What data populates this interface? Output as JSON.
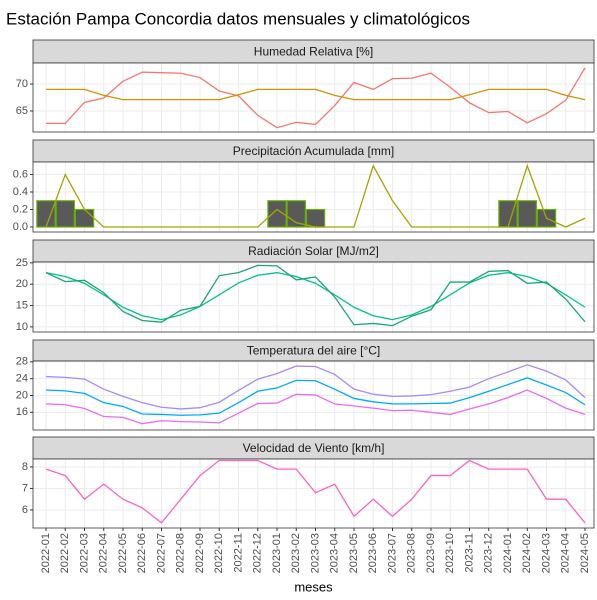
{
  "title": "Estación Pampa Concordia datos mensuales y climatológicos",
  "chart_data": [
    {
      "type": "line",
      "title": "Humedad Relativa [%]",
      "ylim": [
        61.1,
        73.9
      ],
      "yticks": [
        65,
        70
      ],
      "grid": true,
      "series": [
        {
          "color": "#F8766D",
          "values": [
            62.7,
            62.7,
            66.6,
            67.4,
            70.5,
            72.2,
            72.1,
            72.0,
            71.2,
            68.7,
            67.8,
            64.2,
            61.9,
            62.9,
            62.5,
            66.0,
            70.3,
            69.0,
            71.0,
            71.1,
            72.0,
            69.4,
            66.5,
            64.7,
            64.9,
            62.8,
            64.5,
            67.0,
            73.0
          ]
        },
        {
          "color": "#D39200",
          "values": [
            69.0,
            69.0,
            69.0,
            67.9,
            67.1,
            67.1,
            67.1,
            67.1,
            67.1,
            67.1,
            68.0,
            69.0,
            69.0,
            69.0,
            69.0,
            67.9,
            67.1,
            67.1,
            67.1,
            67.1,
            67.1,
            67.1,
            68.0,
            69.0,
            69.0,
            69.0,
            69.0,
            67.9,
            67.1
          ]
        }
      ]
    },
    {
      "type": "line",
      "title": "Precipitación Acumulada [mm]",
      "ylim": [
        -0.057,
        0.743
      ],
      "yticks": [
        {
          "value": 0,
          "label": "0.0"
        },
        0.2,
        0.4,
        0.6
      ],
      "grid": true,
      "series": [
        {
          "type": "bar",
          "color": "#595959",
          "outline": "#64B200",
          "values": [
            0.3,
            0.3,
            0.2,
            0,
            0,
            0,
            0,
            0,
            0,
            0,
            0,
            0,
            0.3,
            0.3,
            0.2,
            0,
            0,
            0,
            0,
            0,
            0,
            0,
            0,
            0,
            0.3,
            0.3,
            0.2,
            0,
            0
          ]
        },
        {
          "type": "line",
          "color": "#A3A500",
          "values": [
            0,
            0.6,
            0.2,
            0,
            0,
            0,
            0,
            0,
            0,
            0,
            0,
            0,
            0.2,
            0.05,
            0,
            0,
            0,
            0.7,
            0.3,
            0,
            0,
            0,
            0,
            0,
            0,
            0.7,
            0.1,
            0,
            0.1
          ]
        }
      ]
    },
    {
      "type": "line",
      "title": "Radiación Solar [MJ/m2]",
      "ylim": [
        8.8,
        25.2
      ],
      "yticks": [
        10,
        15,
        20,
        25
      ],
      "grid": true,
      "series": [
        {
          "color": "#00C08B",
          "values": [
            22.7,
            21.8,
            20.2,
            17.5,
            14.6,
            12.6,
            11.7,
            12.8,
            14.8,
            17.5,
            20.3,
            22.1,
            22.7,
            21.8,
            20.2,
            17.5,
            14.6,
            12.6,
            11.7,
            12.8,
            14.8,
            17.5,
            20.3,
            22.1,
            22.7,
            21.8,
            20.2,
            17.5,
            14.6
          ]
        },
        {
          "color": "#1CA66E",
          "values": [
            22.7,
            20.6,
            20.9,
            18.0,
            13.6,
            11.5,
            11.1,
            13.9,
            14.8,
            22.0,
            22.7,
            24.4,
            24.3,
            21.0,
            21.7,
            17.0,
            10.5,
            10.8,
            10.3,
            12.5,
            14.0,
            20.5,
            20.5,
            23.0,
            23.2,
            20.2,
            20.5,
            16.5,
            11.2
          ]
        }
      ]
    },
    {
      "type": "line",
      "title": "Temperatura del aire [°C]",
      "ylim": [
        11.8,
        28.2
      ],
      "yticks": [
        16,
        20,
        24,
        28
      ],
      "grid": true,
      "series": [
        {
          "color": "#A58AFF",
          "values": [
            24.5,
            24.3,
            23.9,
            21.5,
            19.8,
            18.3,
            17.2,
            16.8,
            17.1,
            18.4,
            21.2,
            23.9,
            25.2,
            27.0,
            26.9,
            25.0,
            21.5,
            20.3,
            19.8,
            19.9,
            20.2,
            21.0,
            22.0,
            24.0,
            25.6,
            27.3,
            25.8,
            23.7,
            19.5
          ]
        },
        {
          "color": "#00A9FF",
          "values": [
            21.3,
            21.1,
            20.5,
            18.3,
            17.4,
            15.6,
            15.5,
            15.3,
            15.4,
            15.8,
            18.3,
            21.0,
            21.8,
            23.6,
            23.5,
            21.5,
            19.3,
            18.5,
            18.0,
            18.0,
            18.1,
            18.2,
            19.5,
            21.0,
            22.6,
            24.2,
            22.5,
            20.7,
            17.8
          ]
        },
        {
          "color": "#E76BF3",
          "values": [
            18.0,
            17.8,
            16.9,
            15.0,
            14.8,
            13.3,
            14.0,
            13.8,
            13.7,
            13.5,
            15.8,
            18.1,
            18.2,
            20.3,
            20.1,
            18.0,
            17.5,
            17.0,
            16.4,
            16.5,
            16.0,
            15.5,
            16.8,
            18.0,
            19.5,
            21.3,
            19.3,
            17.0,
            15.5
          ]
        }
      ]
    },
    {
      "type": "line",
      "title": "Velocidad de Viento [km/h]",
      "ylim": [
        5.16,
        8.37
      ],
      "yticks": [
        6,
        7,
        8
      ],
      "grid": true,
      "xlabel": "meses",
      "categories": [
        "2022-01",
        "2022-02",
        "2022-03",
        "2022-04",
        "2022-05",
        "2022-06",
        "2022-07",
        "2022-08",
        "2022-09",
        "2022-10",
        "2022-11",
        "2022-12",
        "2023-01",
        "2023-02",
        "2023-03",
        "2023-04",
        "2023-05",
        "2023-06",
        "2023-07",
        "2023-08",
        "2023-09",
        "2023-10",
        "2023-11",
        "2023-12",
        "2024-01",
        "2024-02",
        "2024-03",
        "2024-04",
        "2024-05"
      ],
      "series": [
        {
          "color": "#FF61C3",
          "values": [
            7.9,
            7.6,
            6.5,
            7.2,
            6.5,
            6.1,
            5.4,
            6.5,
            7.6,
            8.3,
            8.3,
            8.3,
            7.9,
            7.9,
            6.8,
            7.2,
            5.7,
            6.5,
            5.7,
            6.5,
            7.6,
            7.6,
            8.3,
            7.9,
            7.9,
            7.9,
            6.5,
            6.5,
            5.4
          ]
        }
      ]
    }
  ]
}
